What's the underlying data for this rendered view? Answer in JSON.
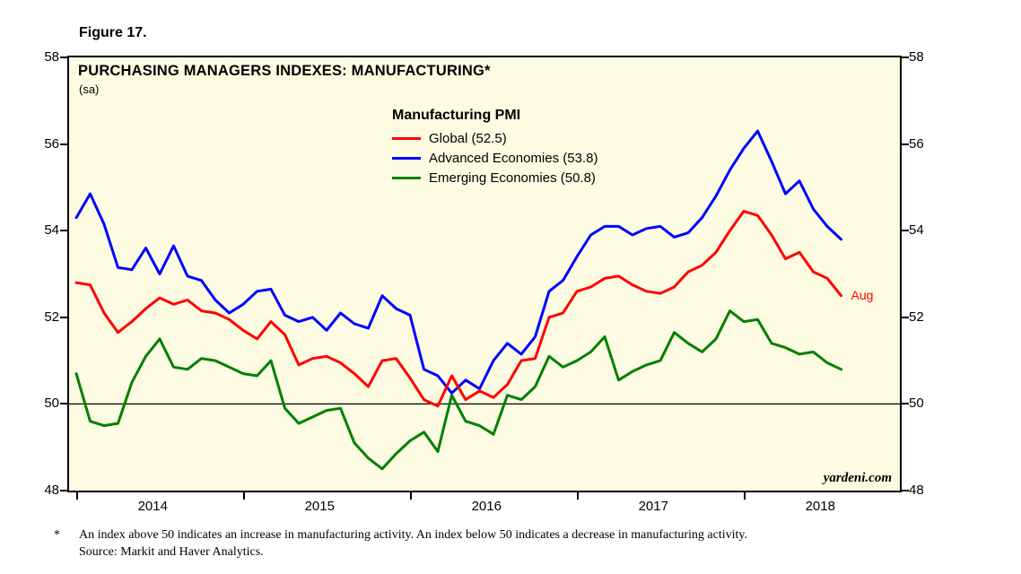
{
  "figure_label": "Figure 17.",
  "chart": {
    "title": "PURCHASING MANAGERS INDEXES: MANUFACTURING*",
    "subtitle": "(sa)",
    "watermark": "yardeni.com",
    "latest_point_label": "Aug",
    "legend": {
      "title": "Manufacturing PMI",
      "entries": [
        {
          "label": "Global (52.5)",
          "color": "#ff0000"
        },
        {
          "label": "Advanced Economies (53.8)",
          "color": "#0000ff"
        },
        {
          "label": "Emerging Economies (50.8)",
          "color": "#008000"
        }
      ]
    },
    "colors": {
      "plot_background": "#fdfce2",
      "axis": "#000000",
      "global": "#ff0000",
      "advanced": "#0000ff",
      "emerging": "#008000",
      "aug_label": "#ff0000"
    }
  },
  "chart_data": {
    "type": "line",
    "title": "PURCHASING MANAGERS INDEXES: MANUFACTURING*",
    "subtitle": "(sa)",
    "frequency": "monthly",
    "x_start": "2014-01",
    "x_end": "2018-08",
    "x_tick_labels": [
      "2014",
      "2015",
      "2016",
      "2017",
      "2018"
    ],
    "y_ticks": [
      48,
      50,
      52,
      54,
      56,
      58
    ],
    "ylim": [
      48,
      58
    ],
    "reference_line": 50,
    "grid": "off",
    "legend_position": "top-center-inside",
    "series": [
      {
        "name": "Global (52.5)",
        "color": "#ff0000",
        "latest_label": "Aug",
        "values": [
          52.8,
          52.75,
          52.1,
          51.65,
          51.9,
          52.2,
          52.45,
          52.3,
          52.4,
          52.15,
          52.1,
          51.95,
          51.7,
          51.5,
          51.9,
          51.6,
          50.9,
          51.05,
          51.1,
          50.95,
          50.7,
          50.4,
          51.0,
          51.05,
          50.6,
          50.1,
          49.95,
          50.65,
          50.1,
          50.3,
          50.15,
          50.45,
          51.0,
          51.05,
          52.0,
          52.1,
          52.6,
          52.7,
          52.9,
          52.95,
          52.75,
          52.6,
          52.55,
          52.7,
          53.05,
          53.2,
          53.5,
          54.0,
          54.45,
          54.35,
          53.9,
          53.35,
          53.5,
          53.05,
          52.9,
          52.5
        ]
      },
      {
        "name": "Advanced Economies (53.8)",
        "color": "#0000ff",
        "values": [
          54.3,
          54.85,
          54.15,
          53.15,
          53.1,
          53.6,
          53.0,
          53.65,
          52.95,
          52.85,
          52.4,
          52.1,
          52.3,
          52.6,
          52.65,
          52.05,
          51.9,
          52.0,
          51.7,
          52.1,
          51.85,
          51.75,
          52.5,
          52.2,
          52.05,
          50.8,
          50.65,
          50.25,
          50.55,
          50.35,
          51.0,
          51.4,
          51.15,
          51.55,
          52.6,
          52.85,
          53.4,
          53.9,
          54.1,
          54.1,
          53.9,
          54.05,
          54.1,
          53.85,
          53.95,
          54.3,
          54.8,
          55.4,
          55.9,
          56.3,
          55.6,
          54.85,
          55.15,
          54.5,
          54.1,
          53.8
        ]
      },
      {
        "name": "Emerging Economies (50.8)",
        "color": "#008000",
        "values": [
          50.7,
          49.6,
          49.5,
          49.55,
          50.5,
          51.1,
          51.5,
          50.85,
          50.8,
          51.05,
          51.0,
          50.85,
          50.7,
          50.65,
          51.0,
          49.9,
          49.55,
          49.7,
          49.85,
          49.9,
          49.1,
          48.75,
          48.5,
          48.85,
          49.15,
          49.35,
          48.9,
          50.2,
          49.6,
          49.5,
          49.3,
          50.2,
          50.1,
          50.4,
          51.1,
          50.85,
          51.0,
          51.2,
          51.55,
          50.55,
          50.75,
          50.9,
          51.0,
          51.65,
          51.4,
          51.2,
          51.5,
          52.15,
          51.9,
          51.95,
          51.4,
          51.3,
          51.15,
          51.2,
          50.95,
          50.8
        ]
      }
    ]
  },
  "footnote": {
    "marker": "*",
    "line1": "An index above 50 indicates an increase in manufacturing activity. An index below 50 indicates a decrease in manufacturing activity.",
    "line2": "Source: Markit and Haver Analytics."
  }
}
